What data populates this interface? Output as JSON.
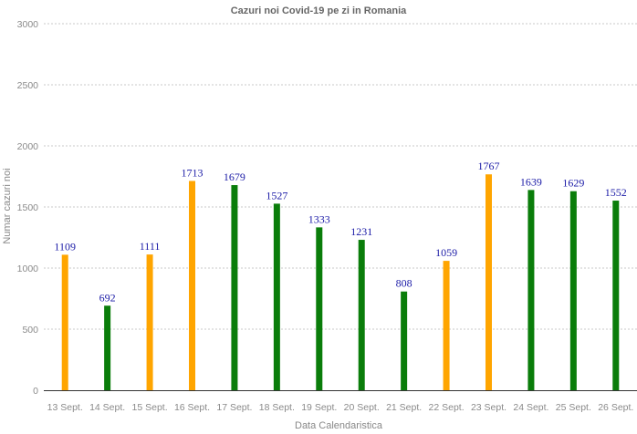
{
  "chart_data": {
    "type": "bar",
    "title": "Cazuri noi Covid-19 pe zi in Romania",
    "xlabel": "Data Calendaristica",
    "ylabel": "Numar cazuri noi",
    "ylim": [
      0,
      3000
    ],
    "yticks": [
      0,
      500,
      1000,
      1500,
      2000,
      2500,
      3000
    ],
    "grid": true,
    "categories": [
      "13 Sept.",
      "14 Sept.",
      "15 Sept.",
      "16 Sept.",
      "17 Sept.",
      "18 Sept.",
      "19 Sept.",
      "20 Sept.",
      "21 Sept.",
      "22 Sept.",
      "23 Sept.",
      "24 Sept.",
      "25 Sept.",
      "26 Sept."
    ],
    "values": [
      1109,
      692,
      1111,
      1713,
      1679,
      1527,
      1333,
      1231,
      808,
      1059,
      1767,
      1639,
      1629,
      1552
    ],
    "bar_colors": [
      "#ffa500",
      "#0a7d0a",
      "#ffa500",
      "#ffa500",
      "#0a7d0a",
      "#0a7d0a",
      "#0a7d0a",
      "#0a7d0a",
      "#0a7d0a",
      "#ffa500",
      "#ffa500",
      "#0a7d0a",
      "#0a7d0a",
      "#0a7d0a"
    ],
    "data_labels": [
      "1109",
      "692",
      "1111",
      "1713",
      "1679",
      "1527",
      "1333",
      "1231",
      "808",
      "1059",
      "1767",
      "1639",
      "1629",
      "1552"
    ],
    "colors": {
      "gridline": "#c8c8c8",
      "axis": "#333333",
      "data_label": "#1a1aa6"
    }
  }
}
